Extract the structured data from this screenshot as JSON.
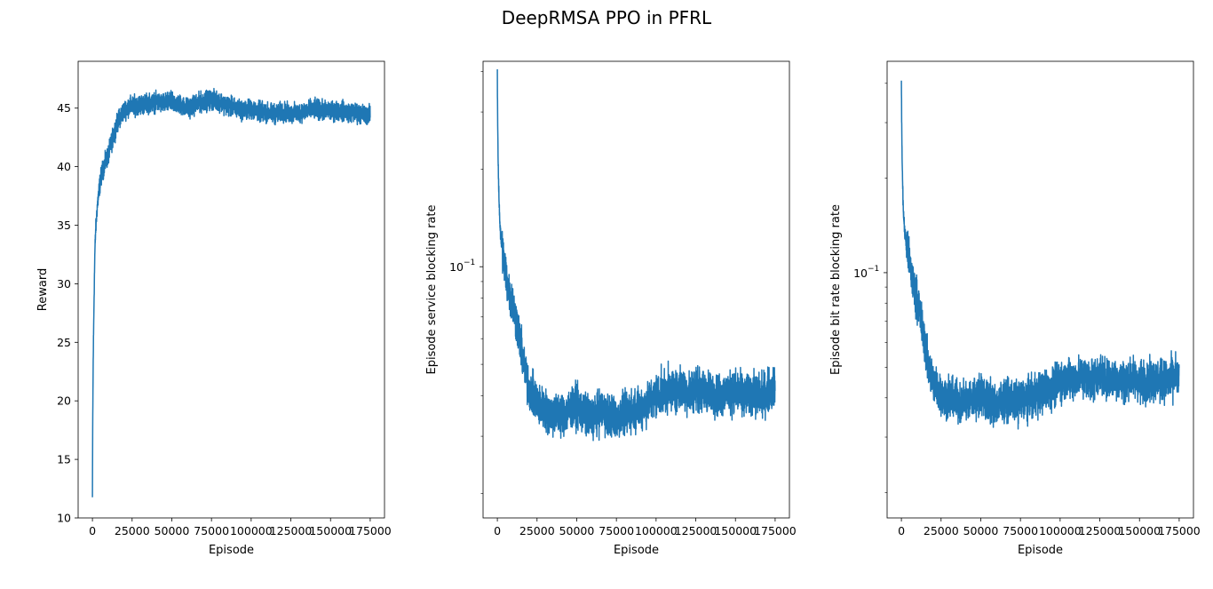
{
  "title": "DeepRMSA PPO in PFRL",
  "line_color": "#1f77b4",
  "chart_data": [
    {
      "type": "line",
      "xlabel": "Episode",
      "ylabel": "Reward",
      "xlim": [
        -9000,
        184000
      ],
      "ylim": [
        10,
        49
      ],
      "yscale": "linear",
      "xticks": [
        0,
        25000,
        50000,
        75000,
        100000,
        125000,
        150000,
        175000
      ],
      "yticks": [
        10,
        15,
        20,
        25,
        30,
        35,
        40,
        45
      ],
      "grid": false,
      "series": [
        {
          "x": [
            0,
            200,
            500,
            1000,
            1500,
            2000,
            3000,
            4000,
            5000,
            6000,
            8000,
            10000,
            12500,
            15000,
            17500,
            20000,
            22500,
            25000,
            30000,
            35000,
            40000,
            45000,
            50000,
            55000,
            60000,
            65000,
            70000,
            75000,
            80000,
            85000,
            90000,
            95000,
            100000,
            105000,
            110000,
            115000,
            120000,
            125000,
            130000,
            135000,
            140000,
            145000,
            150000,
            155000,
            160000,
            165000,
            170000,
            175000
          ],
          "y": [
            11.7,
            18.5,
            23.5,
            28.5,
            32.5,
            34.5,
            36.5,
            37.8,
            38.8,
            39.5,
            40.3,
            41.0,
            42.3,
            43.5,
            44.3,
            44.8,
            45.1,
            45.2,
            45.3,
            45.4,
            45.5,
            45.4,
            45.5,
            45.3,
            45.0,
            45.3,
            45.6,
            45.7,
            45.6,
            45.2,
            45.0,
            44.8,
            44.9,
            44.7,
            44.6,
            44.5,
            44.7,
            44.5,
            44.6,
            44.8,
            44.9,
            44.8,
            44.7,
            44.8,
            44.7,
            44.6,
            44.5,
            44.4
          ],
          "noise": 0.9
        }
      ]
    },
    {
      "type": "line",
      "xlabel": "Episode",
      "ylabel": "Episode service blocking rate",
      "xlim": [
        -9000,
        184000
      ],
      "ylim": [
        0.0168,
        0.43
      ],
      "yscale": "log",
      "xticks": [
        0,
        25000,
        50000,
        75000,
        100000,
        125000,
        150000,
        175000
      ],
      "yticks": [
        0.1
      ],
      "ytick_labels": [
        "10"
      ],
      "ytick_exp": "−1",
      "grid": false,
      "series": [
        {
          "x": [
            0,
            200,
            500,
            1000,
            1500,
            2000,
            3000,
            4000,
            5000,
            6000,
            8000,
            10000,
            12500,
            15000,
            17500,
            20000,
            25000,
            30000,
            35000,
            40000,
            45000,
            50000,
            55000,
            60000,
            65000,
            70000,
            75000,
            80000,
            85000,
            90000,
            95000,
            100000,
            105000,
            110000,
            115000,
            120000,
            125000,
            130000,
            135000,
            140000,
            145000,
            150000,
            155000,
            160000,
            165000,
            170000,
            175000
          ],
          "y": [
            0.38,
            0.28,
            0.21,
            0.165,
            0.14,
            0.125,
            0.115,
            0.105,
            0.098,
            0.09,
            0.082,
            0.075,
            0.066,
            0.056,
            0.047,
            0.042,
            0.038,
            0.036,
            0.035,
            0.035,
            0.036,
            0.037,
            0.035,
            0.034,
            0.036,
            0.035,
            0.034,
            0.035,
            0.036,
            0.037,
            0.038,
            0.04,
            0.041,
            0.042,
            0.042,
            0.041,
            0.042,
            0.041,
            0.041,
            0.04,
            0.041,
            0.041,
            0.04,
            0.041,
            0.04,
            0.041,
            0.042
          ],
          "noise": 0.16
        }
      ]
    },
    {
      "type": "line",
      "xlabel": "Episode",
      "ylabel": "Episode bit rate blocking rate",
      "xlim": [
        -9000,
        184000
      ],
      "ylim": [
        0.0166,
        0.47
      ],
      "yscale": "log",
      "xticks": [
        0,
        25000,
        50000,
        75000,
        100000,
        125000,
        150000,
        175000
      ],
      "yticks": [
        0.1
      ],
      "ytick_labels": [
        "10"
      ],
      "ytick_exp": "−1",
      "grid": false,
      "series": [
        {
          "x": [
            0,
            200,
            500,
            1000,
            1500,
            2000,
            3000,
            4000,
            5000,
            6000,
            8000,
            10000,
            12500,
            15000,
            17500,
            20000,
            25000,
            30000,
            35000,
            40000,
            45000,
            50000,
            55000,
            60000,
            65000,
            70000,
            75000,
            80000,
            85000,
            90000,
            95000,
            100000,
            105000,
            110000,
            115000,
            120000,
            125000,
            130000,
            135000,
            140000,
            145000,
            150000,
            155000,
            160000,
            165000,
            170000,
            175000
          ],
          "y": [
            0.4,
            0.3,
            0.22,
            0.17,
            0.15,
            0.135,
            0.125,
            0.115,
            0.108,
            0.1,
            0.09,
            0.082,
            0.07,
            0.058,
            0.05,
            0.045,
            0.041,
            0.04,
            0.039,
            0.039,
            0.04,
            0.041,
            0.039,
            0.038,
            0.04,
            0.039,
            0.039,
            0.04,
            0.041,
            0.042,
            0.043,
            0.045,
            0.046,
            0.046,
            0.047,
            0.046,
            0.047,
            0.046,
            0.046,
            0.045,
            0.046,
            0.045,
            0.045,
            0.046,
            0.045,
            0.046,
            0.047
          ],
          "noise": 0.16
        }
      ]
    }
  ]
}
